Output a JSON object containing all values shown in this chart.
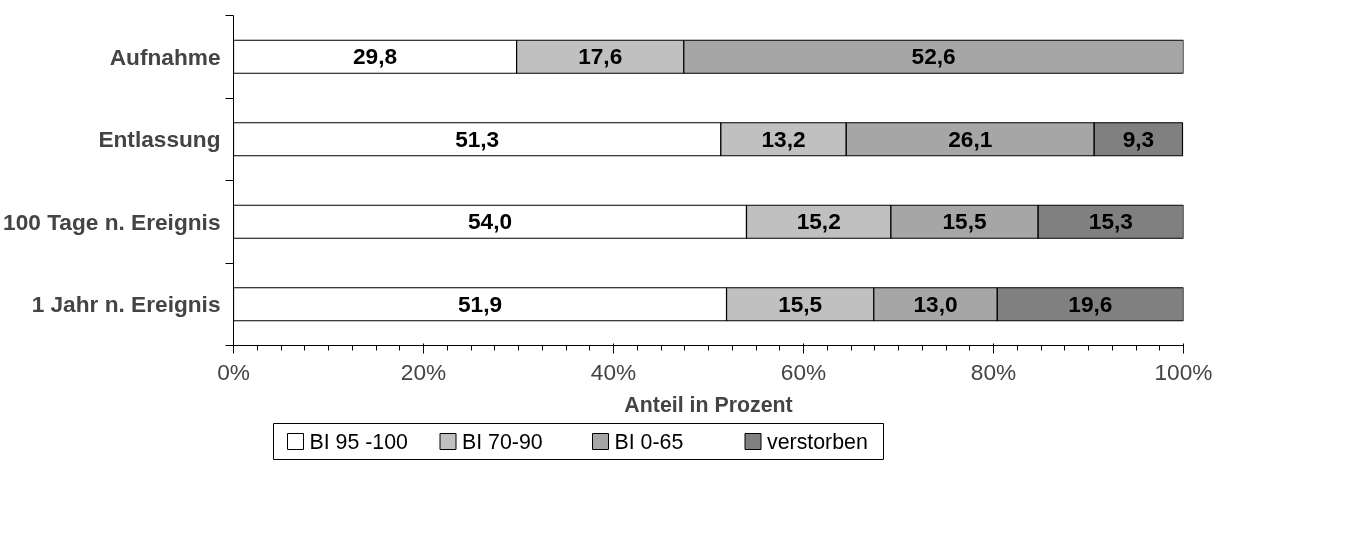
{
  "chart_data": {
    "type": "bar",
    "orientation": "horizontal",
    "stacked": true,
    "xlabel": "Anteil in Prozent",
    "categories": [
      "Aufnahme",
      "Entlassung",
      "100 Tage n. Ereignis",
      "1 Jahr n. Ereignis"
    ],
    "series": [
      {
        "name": "BI 95 -100",
        "color": "#ffffff",
        "values": [
          29.8,
          51.3,
          54.0,
          51.9
        ],
        "value_labels": [
          "29,8",
          "51,3",
          "54,0",
          "51,9"
        ]
      },
      {
        "name": "BI 70-90",
        "color": "#c0c0c0",
        "values": [
          17.6,
          13.2,
          15.2,
          15.5
        ],
        "value_labels": [
          "17,6",
          "13,2",
          "15,2",
          "15,5"
        ]
      },
      {
        "name": "BI 0-65",
        "color": "#a6a6a6",
        "values": [
          52.6,
          26.1,
          15.5,
          13.0
        ],
        "value_labels": [
          "52,6",
          "26,1",
          "15,5",
          "13,0"
        ]
      },
      {
        "name": "verstorben",
        "color": "#808080",
        "values": [
          null,
          9.3,
          15.3,
          19.6
        ],
        "value_labels": [
          null,
          "9,3",
          "15,3",
          "19,6"
        ]
      }
    ],
    "xlim": [
      0,
      100
    ],
    "xticks": [
      {
        "value": 0,
        "label": "0%"
      },
      {
        "value": 20,
        "label": "20%"
      },
      {
        "value": 40,
        "label": "40%"
      },
      {
        "value": 60,
        "label": "60%"
      },
      {
        "value": 80,
        "label": "80%"
      },
      {
        "value": 100,
        "label": "100%"
      }
    ],
    "legend": "bottom"
  }
}
